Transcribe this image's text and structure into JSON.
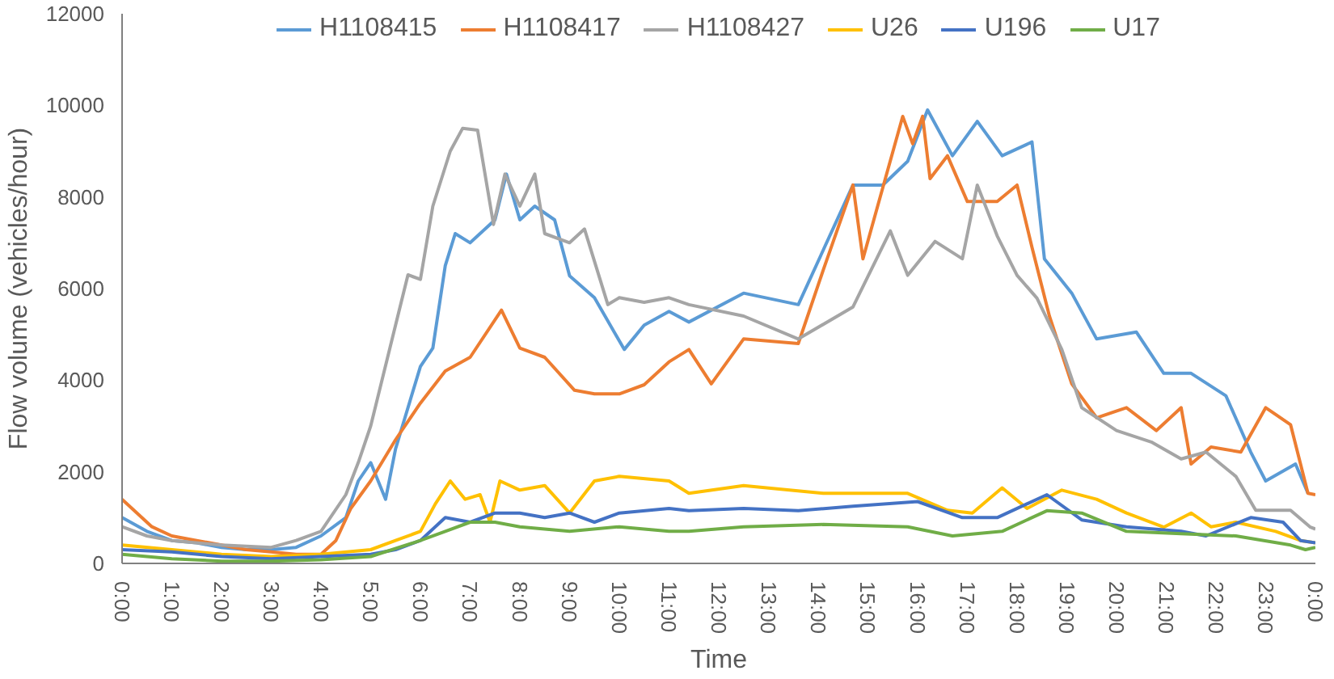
{
  "chart_data": {
    "type": "line",
    "xlabel": "Time",
    "ylabel": "Flow volume (vehicles/hour)",
    "xlim": [
      0,
      24
    ],
    "ylim": [
      0,
      12000
    ],
    "yticks": [
      0,
      2000,
      4000,
      6000,
      8000,
      10000,
      12000
    ],
    "xticks": [
      {
        "value": 0,
        "label": "0:00"
      },
      {
        "value": 1,
        "label": "1:00"
      },
      {
        "value": 2,
        "label": "2:00"
      },
      {
        "value": 3,
        "label": "3:00"
      },
      {
        "value": 4,
        "label": "4:00"
      },
      {
        "value": 5,
        "label": "5:00"
      },
      {
        "value": 6,
        "label": "6:00"
      },
      {
        "value": 7,
        "label": "7:00"
      },
      {
        "value": 8,
        "label": "8:00"
      },
      {
        "value": 9,
        "label": "9:00"
      },
      {
        "value": 10,
        "label": "10:00"
      },
      {
        "value": 11,
        "label": "11:00"
      },
      {
        "value": 12,
        "label": "12:00"
      },
      {
        "value": 13,
        "label": "13:00"
      },
      {
        "value": 14,
        "label": "14:00"
      },
      {
        "value": 15,
        "label": "15:00"
      },
      {
        "value": 16,
        "label": "16:00"
      },
      {
        "value": 17,
        "label": "17:00"
      },
      {
        "value": 18,
        "label": "18:00"
      },
      {
        "value": 19,
        "label": "19:00"
      },
      {
        "value": 20,
        "label": "20:00"
      },
      {
        "value": 21,
        "label": "21:00"
      },
      {
        "value": 22,
        "label": "22:00"
      },
      {
        "value": 23,
        "label": "23:00"
      },
      {
        "value": 24,
        "label": "0:00"
      }
    ],
    "grid": false,
    "legend": "top",
    "marker": "none",
    "line_style": "solid",
    "series": [
      {
        "name": "H1108415",
        "color": "#5b9bd5",
        "x": [
          0,
          0.5,
          1,
          1.5,
          2,
          2.5,
          3,
          3.5,
          4,
          4.5,
          4.75,
          5,
          5.3,
          5.5,
          5.75,
          6,
          6.25,
          6.5,
          6.7,
          7,
          7.5,
          7.73,
          8,
          8.3,
          8.7,
          9,
          9.5,
          10.1,
          10.5,
          11,
          11.4,
          12.5,
          13.6,
          14.7,
          15.3,
          15.8,
          16.2,
          16.7,
          17.2,
          17.7,
          18.3,
          18.55,
          19.1,
          19.6,
          20.4,
          20.95,
          21.5,
          22.2,
          22.7,
          23,
          23.6,
          23.85
        ],
        "values": [
          1000,
          700,
          500,
          450,
          350,
          300,
          300,
          350,
          600,
          1000,
          1800,
          2200,
          1400,
          2500,
          3400,
          4300,
          4700,
          6500,
          7200,
          7000,
          7500,
          8500,
          7500,
          7800,
          7500,
          6280,
          5800,
          4670,
          5200,
          5500,
          5270,
          5900,
          5650,
          8260,
          8260,
          8780,
          9900,
          8900,
          9650,
          8900,
          9200,
          6650,
          5900,
          4900,
          5050,
          4150,
          4150,
          3660,
          2430,
          1800,
          2170,
          1530
        ]
      },
      {
        "name": "H1108417",
        "color": "#ed7d31",
        "x": [
          0,
          0.3,
          0.6,
          1,
          1.5,
          2,
          2.5,
          3,
          3.5,
          4,
          4.3,
          4.6,
          5,
          5.5,
          6,
          6.5,
          7,
          7.63,
          8,
          8.5,
          9.1,
          9.5,
          10,
          10.5,
          11,
          11.4,
          11.85,
          12.5,
          13.6,
          14.1,
          14.7,
          14.9,
          15.7,
          15.9,
          16.1,
          16.25,
          16.6,
          17,
          17.6,
          18,
          18.3,
          18.65,
          19.1,
          19.6,
          20.2,
          20.8,
          21.3,
          21.5,
          21.9,
          22.5,
          23,
          23.5,
          23.85,
          24
        ],
        "values": [
          1400,
          1100,
          800,
          600,
          500,
          400,
          300,
          250,
          200,
          200,
          500,
          1200,
          1800,
          2700,
          3500,
          4200,
          4500,
          5530,
          4700,
          4500,
          3780,
          3700,
          3700,
          3900,
          4400,
          4670,
          3920,
          4900,
          4800,
          6400,
          8260,
          6650,
          9760,
          9160,
          9760,
          8400,
          8900,
          7900,
          7900,
          8260,
          6900,
          5400,
          3920,
          3180,
          3400,
          2900,
          3400,
          2170,
          2540,
          2430,
          3400,
          3030,
          1530,
          1500
        ]
      },
      {
        "name": "H1108427",
        "color": "#a5a5a5",
        "x": [
          0,
          0.5,
          1,
          2,
          3,
          3.5,
          4,
          4.5,
          4.75,
          5,
          5.5,
          5.75,
          6,
          6.25,
          6.6,
          6.85,
          7.15,
          7.47,
          7.7,
          8,
          8.3,
          8.5,
          9,
          9.3,
          9.77,
          10,
          10.5,
          11,
          11.4,
          12.5,
          13.6,
          14.7,
          15.45,
          15.8,
          16.35,
          16.9,
          17.2,
          17.6,
          18,
          18.4,
          18.9,
          19.3,
          20,
          20.7,
          21.3,
          21.8,
          22.4,
          22.8,
          23.5,
          23.9,
          24
        ],
        "values": [
          800,
          600,
          500,
          400,
          350,
          500,
          700,
          1500,
          2200,
          3000,
          5200,
          6300,
          6200,
          7800,
          9000,
          9500,
          9460,
          7400,
          8500,
          7800,
          8500,
          7200,
          7000,
          7300,
          5650,
          5800,
          5700,
          5800,
          5650,
          5400,
          4900,
          5600,
          7260,
          6290,
          7030,
          6650,
          8260,
          7150,
          6290,
          5790,
          4670,
          3400,
          2900,
          2650,
          2280,
          2430,
          1900,
          1160,
          1160,
          790,
          750
        ]
      },
      {
        "name": "U26",
        "color": "#ffc000",
        "x": [
          0,
          1,
          2,
          3,
          4,
          5,
          5.5,
          6,
          6.3,
          6.6,
          6.9,
          7.2,
          7.4,
          7.6,
          8,
          8.5,
          9,
          9.5,
          10,
          11,
          11.4,
          12.5,
          14.1,
          15.8,
          16.6,
          17.1,
          17.7,
          18.2,
          18.9,
          19.6,
          20.2,
          20.95,
          21.5,
          21.9,
          22.4,
          23.2,
          23.7,
          24
        ],
        "values": [
          400,
          300,
          200,
          150,
          200,
          300,
          500,
          700,
          1300,
          1800,
          1400,
          1500,
          900,
          1800,
          1600,
          1700,
          1100,
          1800,
          1900,
          1800,
          1530,
          1700,
          1530,
          1530,
          1160,
          1100,
          1650,
          1200,
          1600,
          1400,
          1100,
          790,
          1100,
          800,
          900,
          700,
          500,
          450
        ]
      },
      {
        "name": "U196",
        "color": "#4472c4",
        "x": [
          0,
          1,
          2,
          3,
          4,
          5,
          5.5,
          6,
          6.5,
          7,
          7.5,
          8,
          8.5,
          9,
          9.5,
          10,
          11,
          11.4,
          12.5,
          13.6,
          14.7,
          16,
          16.9,
          17.6,
          18.6,
          19.3,
          20.2,
          21.3,
          21.8,
          22.7,
          23.35,
          23.7,
          24
        ],
        "values": [
          300,
          250,
          150,
          100,
          150,
          200,
          300,
          500,
          1000,
          900,
          1100,
          1100,
          1000,
          1100,
          900,
          1100,
          1200,
          1150,
          1200,
          1150,
          1250,
          1350,
          1000,
          1000,
          1500,
          950,
          800,
          700,
          600,
          1000,
          900,
          500,
          450
        ]
      },
      {
        "name": "U17",
        "color": "#70ad47",
        "x": [
          0,
          1,
          2,
          3,
          4,
          5,
          6,
          6.5,
          7,
          7.5,
          8,
          9,
          10,
          11,
          11.4,
          12.5,
          14.1,
          15.8,
          16.7,
          17.7,
          18.6,
          19.3,
          20.2,
          21.3,
          22.4,
          23.5,
          23.8,
          24
        ],
        "values": [
          200,
          100,
          50,
          50,
          80,
          150,
          500,
          700,
          900,
          900,
          800,
          700,
          800,
          700,
          700,
          800,
          850,
          800,
          600,
          700,
          1150,
          1100,
          700,
          650,
          600,
          400,
          300,
          350
        ]
      }
    ]
  }
}
